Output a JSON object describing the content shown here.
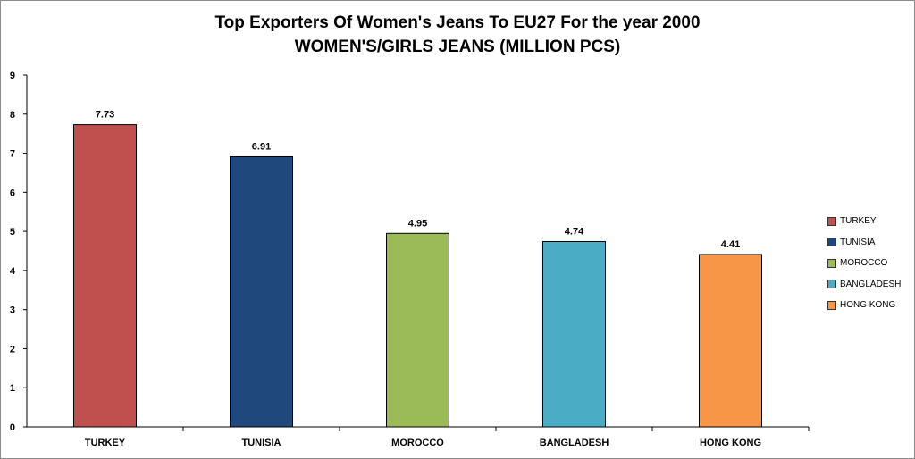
{
  "chart_data": {
    "type": "bar",
    "title": "Top Exporters Of Women's Jeans To EU27 For the year 2000",
    "subtitle": "WOMEN'S/GIRLS  JEANS (MILLION PCS)",
    "categories": [
      "TURKEY",
      "TUNISIA",
      "MOROCCO",
      "BANGLADESH",
      "HONG KONG"
    ],
    "values": [
      7.73,
      6.91,
      4.95,
      4.74,
      4.41
    ],
    "value_labels": [
      "7.73",
      "6.91",
      "4.95",
      "4.74",
      "4.41"
    ],
    "colors": [
      "#c0504d",
      "#1f497d",
      "#9bbb59",
      "#4bacc6",
      "#f79646"
    ],
    "yticks": [
      0,
      1,
      2,
      3,
      4,
      5,
      6,
      7,
      8,
      9
    ],
    "ylim": [
      0,
      9
    ],
    "grid": false,
    "legend_position": "right",
    "xlabel": "",
    "ylabel": ""
  }
}
